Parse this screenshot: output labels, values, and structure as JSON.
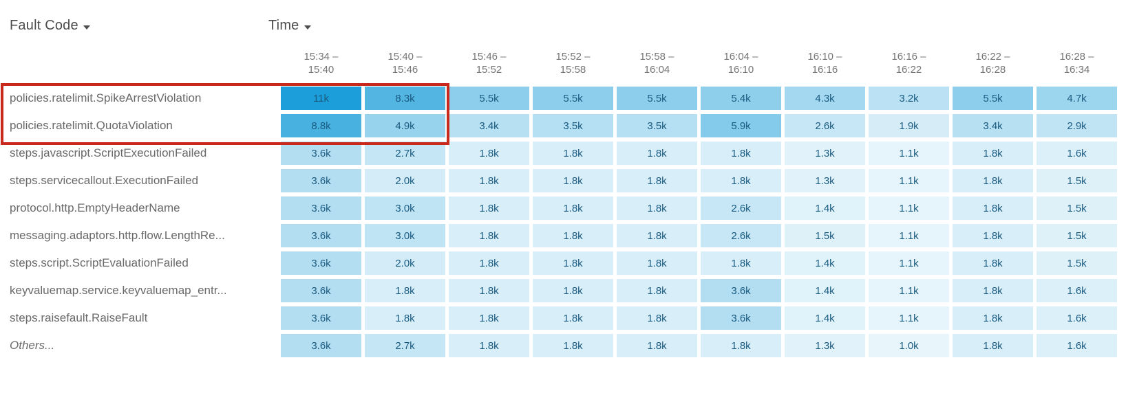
{
  "page": {
    "background": "#ffffff"
  },
  "controls": {
    "fault_code_label": "Fault Code",
    "time_label": "Time"
  },
  "chart_data": {
    "type": "heatmap",
    "row_dimension": "Fault Code",
    "column_dimension": "Time",
    "legend_position": "none",
    "grid": false,
    "columns": [
      {
        "line1": "15:34 –",
        "line2": "15:40"
      },
      {
        "line1": "15:40 –",
        "line2": "15:46"
      },
      {
        "line1": "15:46 –",
        "line2": "15:52"
      },
      {
        "line1": "15:52 –",
        "line2": "15:58"
      },
      {
        "line1": "15:58 –",
        "line2": "16:04"
      },
      {
        "line1": "16:04 –",
        "line2": "16:10"
      },
      {
        "line1": "16:10 –",
        "line2": "16:16"
      },
      {
        "line1": "16:16 –",
        "line2": "16:22"
      },
      {
        "line1": "16:22 –",
        "line2": "16:28"
      },
      {
        "line1": "16:28 –",
        "line2": "16:34"
      }
    ],
    "rows": [
      {
        "label": "policies.ratelimit.SpikeArrestViolation",
        "italic": false,
        "display": [
          "11k",
          "8.3k",
          "5.5k",
          "5.5k",
          "5.5k",
          "5.4k",
          "4.3k",
          "3.2k",
          "5.5k",
          "4.7k"
        ],
        "values": [
          11000,
          8300,
          5500,
          5500,
          5500,
          5400,
          4300,
          3200,
          5500,
          4700
        ]
      },
      {
        "label": "policies.ratelimit.QuotaViolation",
        "italic": false,
        "display": [
          "8.8k",
          "4.9k",
          "3.4k",
          "3.5k",
          "3.5k",
          "5.9k",
          "2.6k",
          "1.9k",
          "3.4k",
          "2.9k"
        ],
        "values": [
          8800,
          4900,
          3400,
          3500,
          3500,
          5900,
          2600,
          1900,
          3400,
          2900
        ]
      },
      {
        "label": "steps.javascript.ScriptExecutionFailed",
        "italic": false,
        "display": [
          "3.6k",
          "2.7k",
          "1.8k",
          "1.8k",
          "1.8k",
          "1.8k",
          "1.3k",
          "1.1k",
          "1.8k",
          "1.6k"
        ],
        "values": [
          3600,
          2700,
          1800,
          1800,
          1800,
          1800,
          1300,
          1100,
          1800,
          1600
        ]
      },
      {
        "label": "steps.servicecallout.ExecutionFailed",
        "italic": false,
        "display": [
          "3.6k",
          "2.0k",
          "1.8k",
          "1.8k",
          "1.8k",
          "1.8k",
          "1.3k",
          "1.1k",
          "1.8k",
          "1.5k"
        ],
        "values": [
          3600,
          2000,
          1800,
          1800,
          1800,
          1800,
          1300,
          1100,
          1800,
          1500
        ]
      },
      {
        "label": "protocol.http.EmptyHeaderName",
        "italic": false,
        "display": [
          "3.6k",
          "3.0k",
          "1.8k",
          "1.8k",
          "1.8k",
          "2.6k",
          "1.4k",
          "1.1k",
          "1.8k",
          "1.5k"
        ],
        "values": [
          3600,
          3000,
          1800,
          1800,
          1800,
          2600,
          1400,
          1100,
          1800,
          1500
        ]
      },
      {
        "label": "messaging.adaptors.http.flow.LengthRe...",
        "italic": false,
        "display": [
          "3.6k",
          "3.0k",
          "1.8k",
          "1.8k",
          "1.8k",
          "2.6k",
          "1.5k",
          "1.1k",
          "1.8k",
          "1.5k"
        ],
        "values": [
          3600,
          3000,
          1800,
          1800,
          1800,
          2600,
          1500,
          1100,
          1800,
          1500
        ]
      },
      {
        "label": "steps.script.ScriptEvaluationFailed",
        "italic": false,
        "display": [
          "3.6k",
          "2.0k",
          "1.8k",
          "1.8k",
          "1.8k",
          "1.8k",
          "1.4k",
          "1.1k",
          "1.8k",
          "1.5k"
        ],
        "values": [
          3600,
          2000,
          1800,
          1800,
          1800,
          1800,
          1400,
          1100,
          1800,
          1500
        ]
      },
      {
        "label": "keyvaluemap.service.keyvaluemap_entr...",
        "italic": false,
        "display": [
          "3.6k",
          "1.8k",
          "1.8k",
          "1.8k",
          "1.8k",
          "3.6k",
          "1.4k",
          "1.1k",
          "1.8k",
          "1.6k"
        ],
        "values": [
          3600,
          1800,
          1800,
          1800,
          1800,
          3600,
          1400,
          1100,
          1800,
          1600
        ]
      },
      {
        "label": "steps.raisefault.RaiseFault",
        "italic": false,
        "display": [
          "3.6k",
          "1.8k",
          "1.8k",
          "1.8k",
          "1.8k",
          "3.6k",
          "1.4k",
          "1.1k",
          "1.8k",
          "1.6k"
        ],
        "values": [
          3600,
          1800,
          1800,
          1800,
          1800,
          3600,
          1400,
          1100,
          1800,
          1600
        ]
      },
      {
        "label": "Others...",
        "italic": true,
        "display": [
          "3.6k",
          "2.7k",
          "1.8k",
          "1.8k",
          "1.8k",
          "1.8k",
          "1.3k",
          "1.0k",
          "1.8k",
          "1.6k"
        ],
        "values": [
          3600,
          2700,
          1800,
          1800,
          1800,
          1800,
          1300,
          1000,
          1800,
          1600
        ]
      }
    ],
    "color_scale": {
      "min_value": 1000,
      "max_value": 11000,
      "min_color": "#E8F5FB",
      "max_color": "#1B9ED9"
    },
    "cell_text_color": "#1A5B80",
    "annotation": {
      "shape": "rectangle",
      "border_color": "#C9291A",
      "covers_row_indexes": [
        0,
        1
      ],
      "covers_column_indexes": [
        0,
        1
      ]
    }
  }
}
